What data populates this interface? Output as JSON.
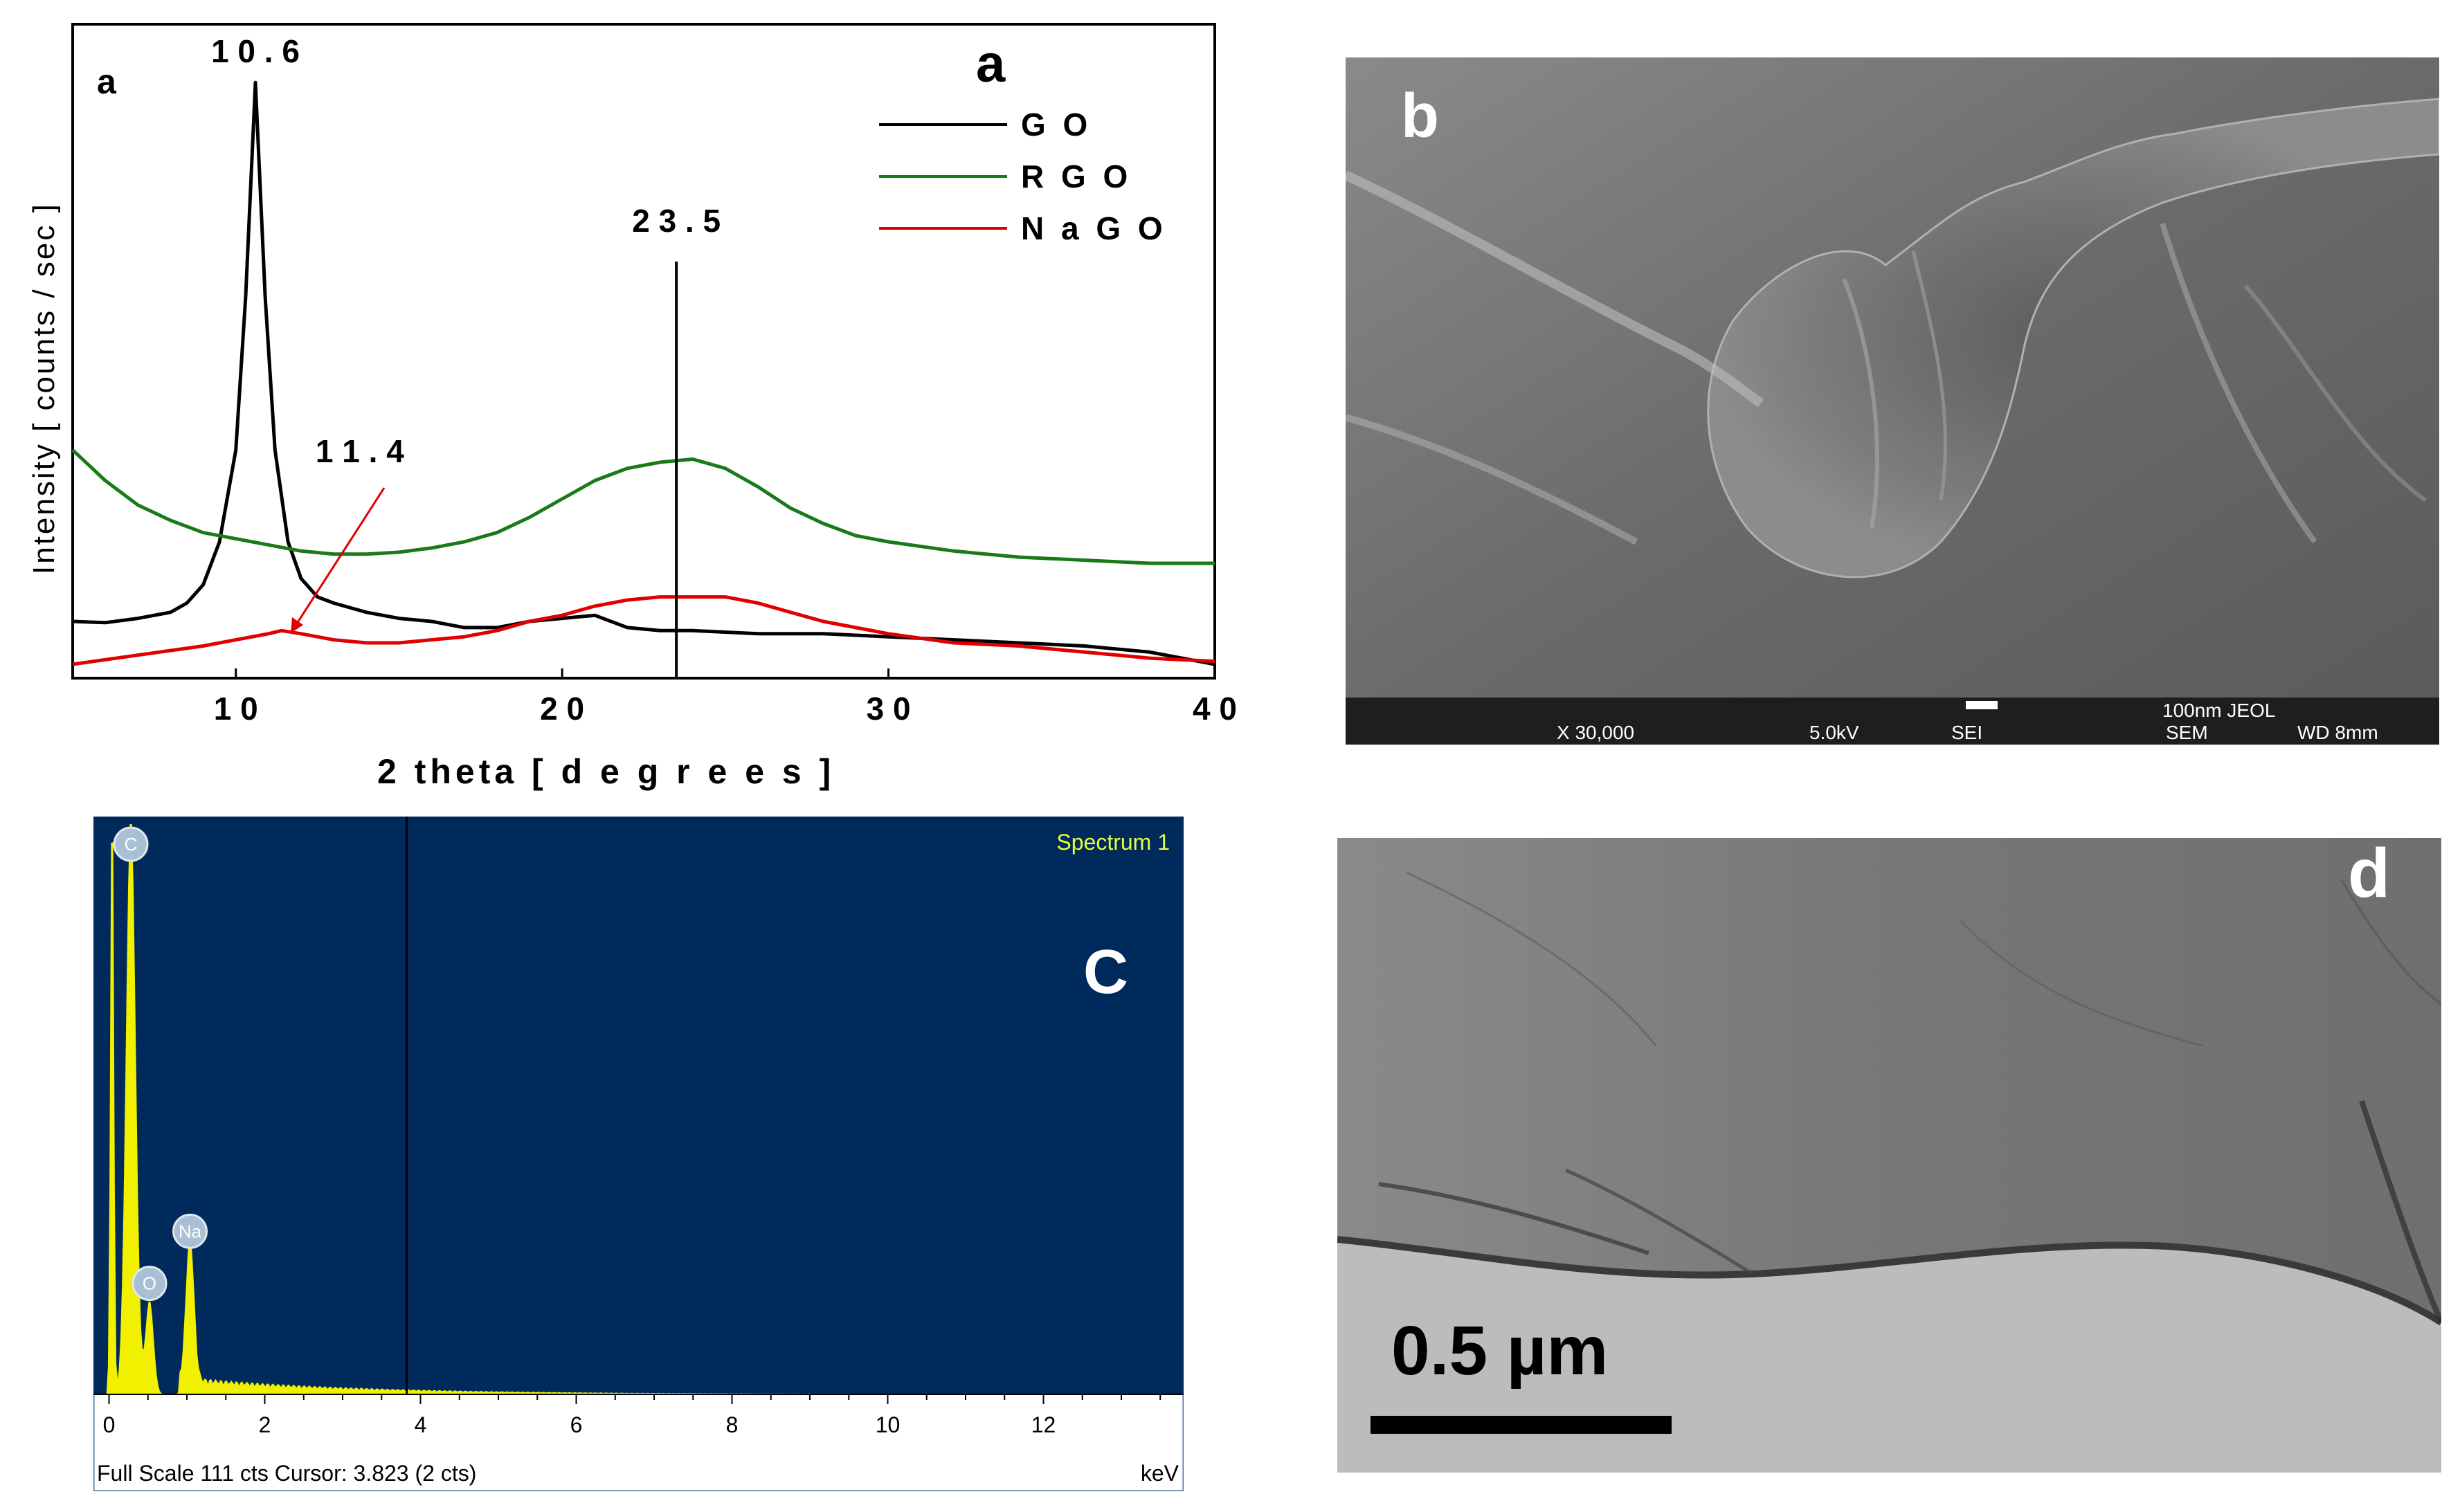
{
  "chart_data": [
    {
      "type": "line",
      "panel_letter": "a",
      "panel_letter_small": "a",
      "xlabel": "2 theta [ d e g r e e s ]",
      "ylabel": "Intensity [ counts / sec ]",
      "xlim": [
        5,
        40
      ],
      "x_ticks": [
        "1 0",
        "2 0",
        "3 0",
        "4 0"
      ],
      "grid": false,
      "legend_position": "top-right",
      "series": [
        {
          "name": "G O",
          "color": "#000000",
          "x": [
            5,
            6,
            7,
            8,
            8.5,
            9,
            9.5,
            10,
            10.3,
            10.6,
            10.9,
            11.2,
            11.6,
            12,
            12.5,
            13,
            14,
            15,
            16,
            17,
            18,
            19,
            20,
            21,
            22,
            23,
            24,
            26,
            28,
            30,
            32,
            34,
            36,
            38,
            40
          ],
          "y": [
            0.07,
            0.068,
            0.075,
            0.085,
            0.1,
            0.13,
            0.2,
            0.35,
            0.6,
            0.95,
            0.6,
            0.35,
            0.2,
            0.14,
            0.11,
            0.1,
            0.085,
            0.075,
            0.07,
            0.06,
            0.06,
            0.07,
            0.075,
            0.08,
            0.06,
            0.055,
            0.055,
            0.05,
            0.05,
            0.045,
            0.04,
            0.035,
            0.03,
            0.02,
            0.0
          ]
        },
        {
          "name": "R G O",
          "color": "#1a7a1a",
          "x": [
            5,
            6,
            7,
            8,
            9,
            10,
            11,
            12,
            13,
            14,
            15,
            16,
            17,
            18,
            19,
            20,
            21,
            22,
            23,
            24,
            25,
            26,
            27,
            28,
            29,
            30,
            32,
            34,
            36,
            38,
            40
          ],
          "y": [
            0.35,
            0.3,
            0.26,
            0.235,
            0.215,
            0.205,
            0.195,
            0.185,
            0.18,
            0.18,
            0.183,
            0.19,
            0.2,
            0.215,
            0.24,
            0.27,
            0.3,
            0.32,
            0.33,
            0.335,
            0.32,
            0.29,
            0.255,
            0.23,
            0.21,
            0.2,
            0.185,
            0.175,
            0.17,
            0.165,
            0.165
          ]
        },
        {
          "name": "N a G O",
          "color": "#e00000",
          "x": [
            5,
            7,
            9,
            10,
            11,
            11.4,
            12,
            13,
            14,
            15,
            16,
            17,
            18,
            19,
            20,
            21,
            22,
            23,
            24,
            25,
            26,
            27,
            28,
            30,
            32,
            34,
            36,
            38,
            40
          ],
          "y": [
            0.0,
            0.015,
            0.03,
            0.04,
            0.05,
            0.055,
            0.05,
            0.04,
            0.035,
            0.035,
            0.04,
            0.045,
            0.055,
            0.07,
            0.08,
            0.095,
            0.105,
            0.11,
            0.11,
            0.11,
            0.1,
            0.085,
            0.07,
            0.05,
            0.035,
            0.03,
            0.02,
            0.01,
            0.005
          ]
        }
      ],
      "annotations": [
        {
          "text": "1 0 . 6",
          "x": 10.6
        },
        {
          "text": "2 3 . 5",
          "x": 23.5
        },
        {
          "text": "1 1 . 4",
          "x": 11.4
        }
      ]
    },
    {
      "type": "bar",
      "panel_letter": "C",
      "title": "Spectrum 1",
      "xlabel": "keV",
      "xlim": [
        -0.2,
        13.8
      ],
      "x_ticks": [
        "0",
        "2",
        "4",
        "6",
        "8",
        "10",
        "12"
      ],
      "cursor_kev": 3.823,
      "footer": "Full Scale 111 cts Cursor: 3.823  (2 cts)",
      "background_color": "#002a5c",
      "spectrum_color": "#f0f000",
      "peaks": [
        {
          "element": "C",
          "kev": 0.28,
          "counts": 111
        },
        {
          "element": "O",
          "kev": 0.52,
          "counts": 18
        },
        {
          "element": "Na",
          "kev": 1.04,
          "counts": 28
        }
      ]
    }
  ],
  "images": {
    "sem": {
      "panel_letter": "b",
      "databar_scale": "100nm JEOL",
      "databar_mag": "X 30,000",
      "databar_kv": "5.0kV",
      "databar_mode": "SEI",
      "databar_type": "SEM",
      "databar_wd": "WD 8mm"
    },
    "tem": {
      "panel_letter": "d",
      "scale_label": "0.5 µm"
    }
  }
}
